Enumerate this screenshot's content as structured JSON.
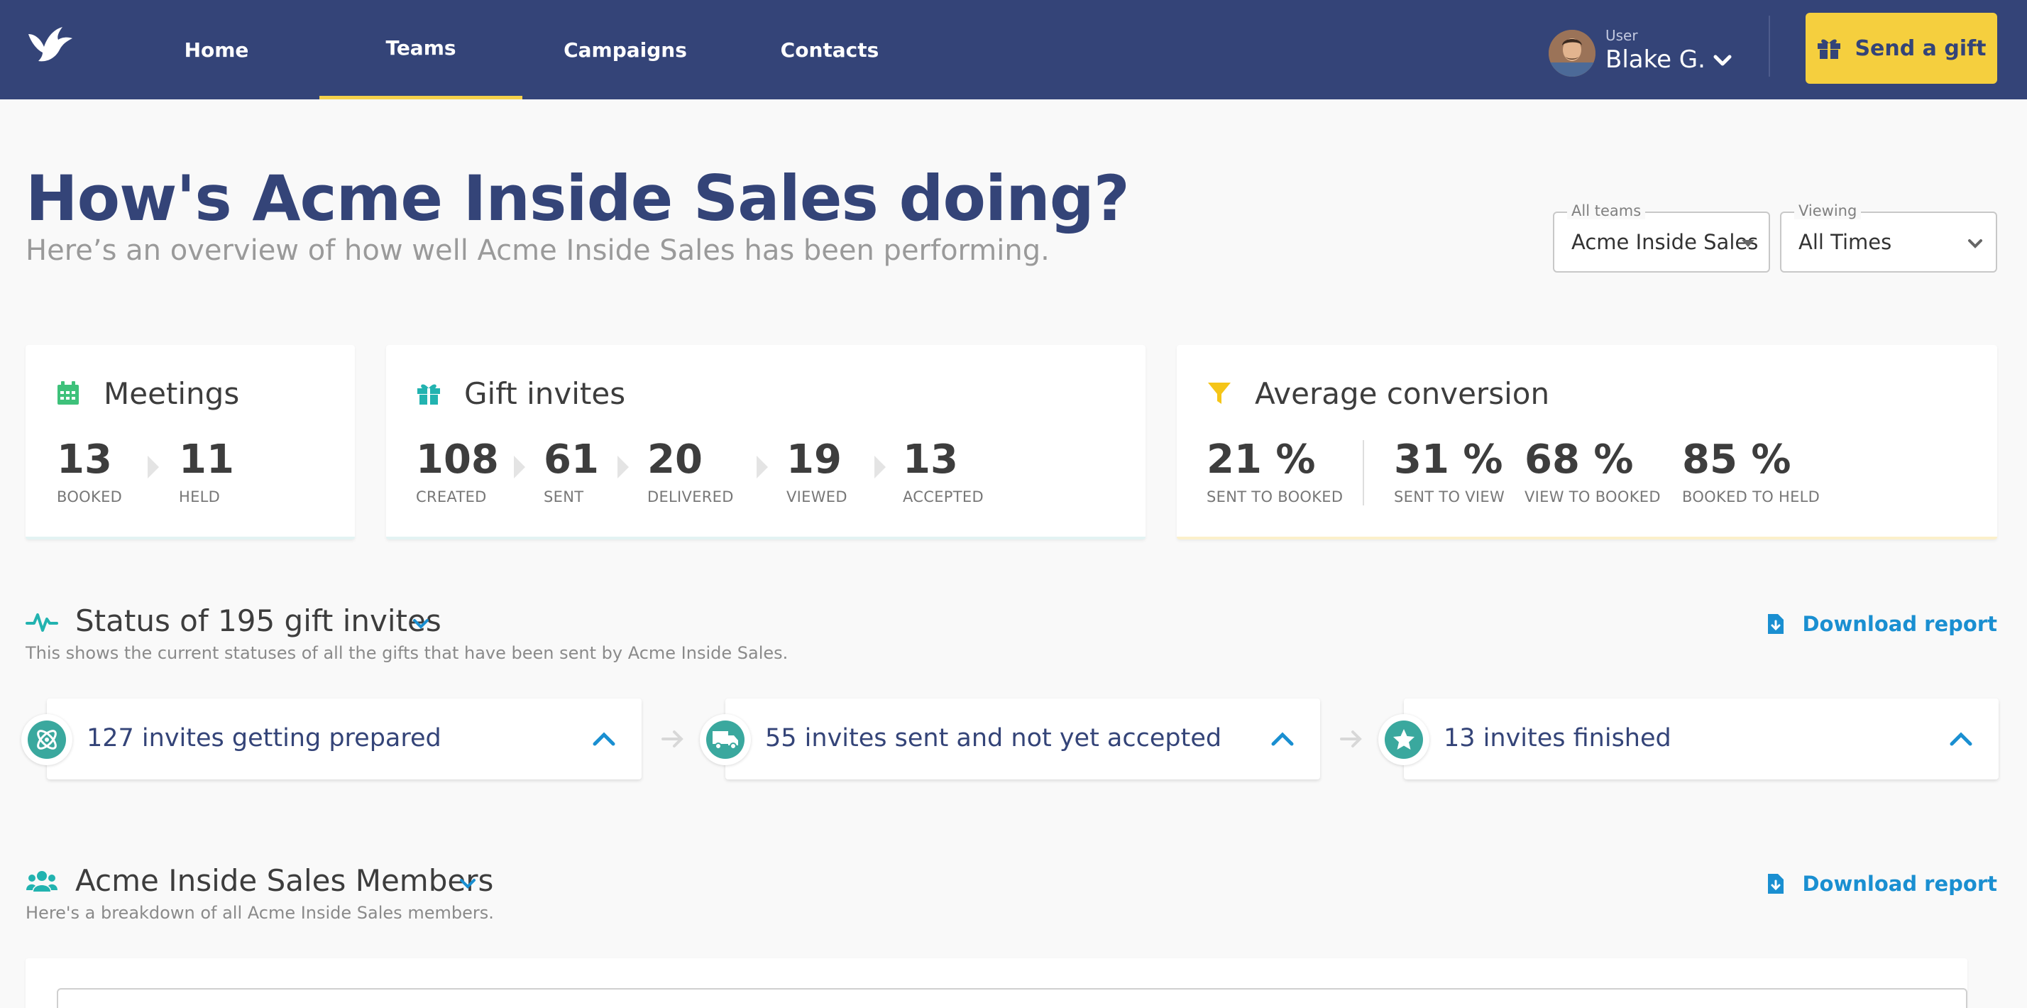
{
  "nav": {
    "items": [
      {
        "label": "Home",
        "active": false
      },
      {
        "label": "Teams",
        "active": true
      },
      {
        "label": "Campaigns",
        "active": false
      },
      {
        "label": "Contacts",
        "active": false
      }
    ],
    "user_caption": "User",
    "user_name": "Blake G.",
    "send_gift_label": "Send a gift",
    "icons": {
      "logo": "bird-logo-icon",
      "user_menu": "chevron-down-icon",
      "send_gift": "gift-icon"
    }
  },
  "header": {
    "title": "How's Acme Inside Sales doing?",
    "subtitle": "Here’s an overview of how well Acme Inside Sales has been performing.",
    "team_filter": {
      "legend": "All teams",
      "value": "Acme Inside Sales"
    },
    "time_filter": {
      "legend": "Viewing",
      "value": "All Times"
    }
  },
  "cards": {
    "meetings": {
      "title": "Meetings",
      "icon": "calendar-icon",
      "stats": [
        {
          "value": "13",
          "label": "BOOKED"
        },
        {
          "value": "11",
          "label": "HELD"
        }
      ]
    },
    "gift_invites": {
      "title": "Gift invites",
      "icon": "gift-icon",
      "stats": [
        {
          "value": "108",
          "label": "CREATED"
        },
        {
          "value": "61",
          "label": "SENT"
        },
        {
          "value": "20",
          "label": "DELIVERED"
        },
        {
          "value": "19",
          "label": "VIEWED"
        },
        {
          "value": "13",
          "label": "ACCEPTED"
        }
      ]
    },
    "conversion": {
      "title": "Average conversion",
      "icon": "filter-icon",
      "stats": [
        {
          "value": "21 %",
          "label": "SENT TO BOOKED"
        },
        {
          "value": "31 %",
          "label": "SENT TO VIEW"
        },
        {
          "value": "68 %",
          "label": "VIEW TO BOOKED"
        },
        {
          "value": "85 %",
          "label": "BOOKED TO HELD"
        }
      ]
    }
  },
  "status_section": {
    "title": "Status of 195 gift invites",
    "description": "This shows the current statuses of all the gifts that have been sent by Acme Inside Sales.",
    "download_label": "Download report",
    "icon": "activity-pulse-icon",
    "items": [
      {
        "text": "127 invites getting prepared",
        "icon": "atom-icon"
      },
      {
        "text": "55 invites sent and not yet accepted",
        "icon": "truck-icon"
      },
      {
        "text": "13 invites finished",
        "icon": "star-icon"
      }
    ]
  },
  "members_section": {
    "title": "Acme Inside Sales Members",
    "description": "Here's a breakdown of all Acme Inside Sales members.",
    "download_label": "Download report",
    "icon": "users-icon"
  },
  "colors": {
    "nav_bg": "#344478",
    "accent_yellow": "#f5cf3e",
    "teal": "#3aa89e",
    "link_blue": "#1a8fd1"
  }
}
